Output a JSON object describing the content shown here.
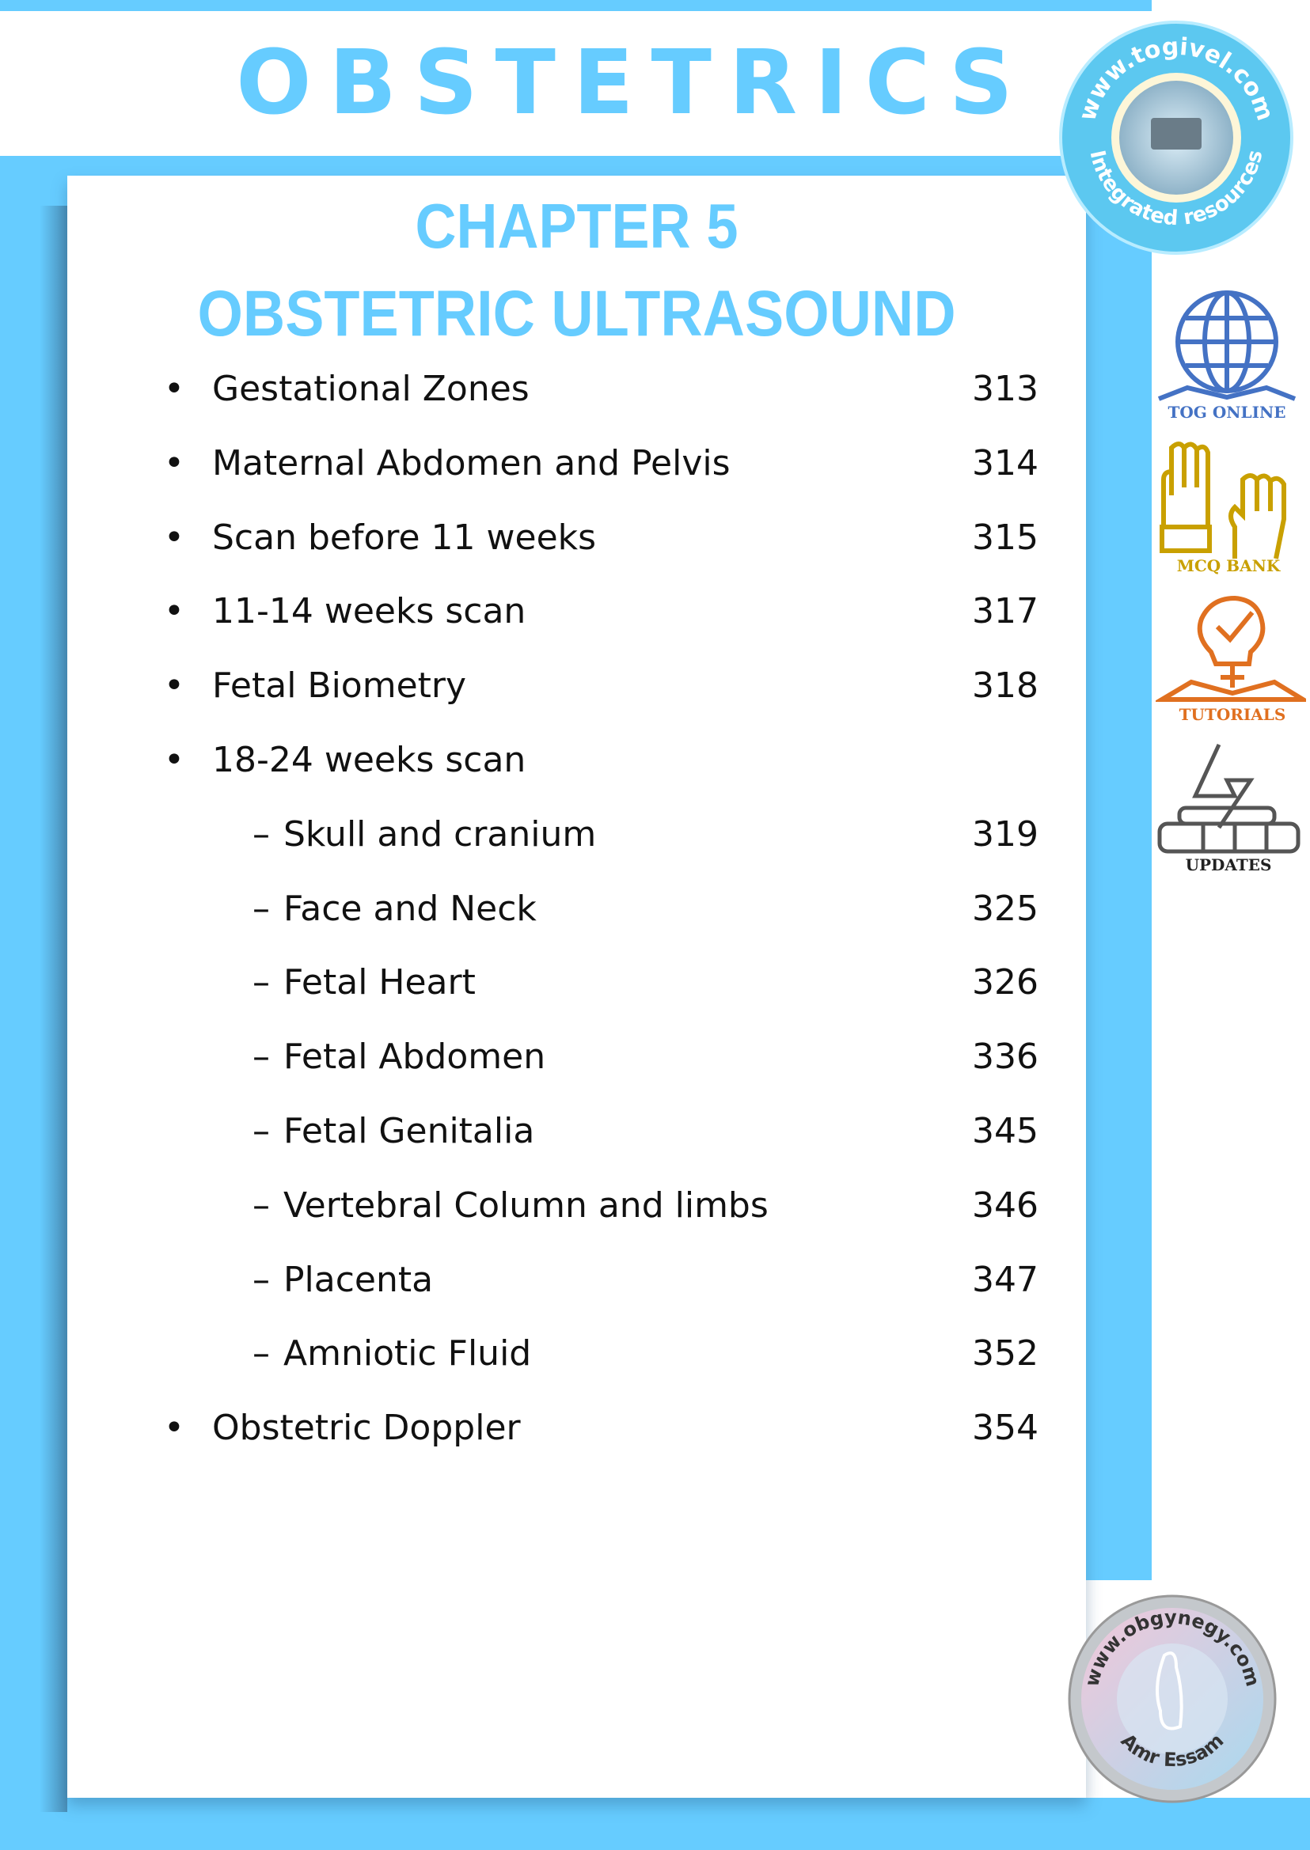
{
  "header": {
    "title": "OBSTETRICS"
  },
  "chapter": {
    "number_label": "CHAPTER 5",
    "title": "OBSTETRIC ULTRASOUND"
  },
  "toc": [
    {
      "label": "Gestational Zones",
      "page": "313",
      "level": 1
    },
    {
      "label": "Maternal Abdomen and Pelvis",
      "page": "314",
      "level": 1
    },
    {
      "label": "Scan before 11 weeks",
      "page": "315",
      "level": 1
    },
    {
      "label": "11-14 weeks scan",
      "page": "317",
      "level": 1
    },
    {
      "label": "Fetal Biometry",
      "page": "318",
      "level": 1
    },
    {
      "label": "18-24 weeks scan",
      "page": "",
      "level": 1
    },
    {
      "label": "Skull and cranium",
      "page": "319",
      "level": 2
    },
    {
      "label": "Face and Neck",
      "page": "325",
      "level": 2
    },
    {
      "label": "Fetal Heart",
      "page": "326",
      "level": 2
    },
    {
      "label": "Fetal Abdomen",
      "page": "336",
      "level": 2
    },
    {
      "label": "Fetal Genitalia",
      "page": "345",
      "level": 2
    },
    {
      "label": "Vertebral Column and limbs",
      "page": "346",
      "level": 2
    },
    {
      "label": "Placenta",
      "page": "347",
      "level": 2
    },
    {
      "label": "Amniotic Fluid",
      "page": "352",
      "level": 2
    },
    {
      "label": "Obstetric Doppler",
      "page": "354",
      "level": 1
    }
  ],
  "markers": {
    "bullet": "•",
    "dash": "–"
  },
  "sidebar": {
    "logo_top": {
      "text_top": "www.togivel.com",
      "text_bottom": "Integrated resources"
    },
    "links": [
      {
        "label": "TOG ONLINE",
        "icon": "globe-book-icon",
        "color": "#4472c4"
      },
      {
        "label": "MCQ BANK",
        "icon": "raised-hands-icon",
        "color": "#c9a000"
      },
      {
        "label": "TUTORIALS",
        "icon": "lightbulb-book-icon",
        "color": "#e07020"
      },
      {
        "label": "UPDATES",
        "icon": "lightning-books-icon",
        "color": "#555555"
      }
    ],
    "logo_bottom": {
      "text": "www.obgynegy.com",
      "author": "Amr Essam"
    }
  },
  "colors": {
    "accent": "#66ccff",
    "shadow": "#4a8fb8"
  }
}
